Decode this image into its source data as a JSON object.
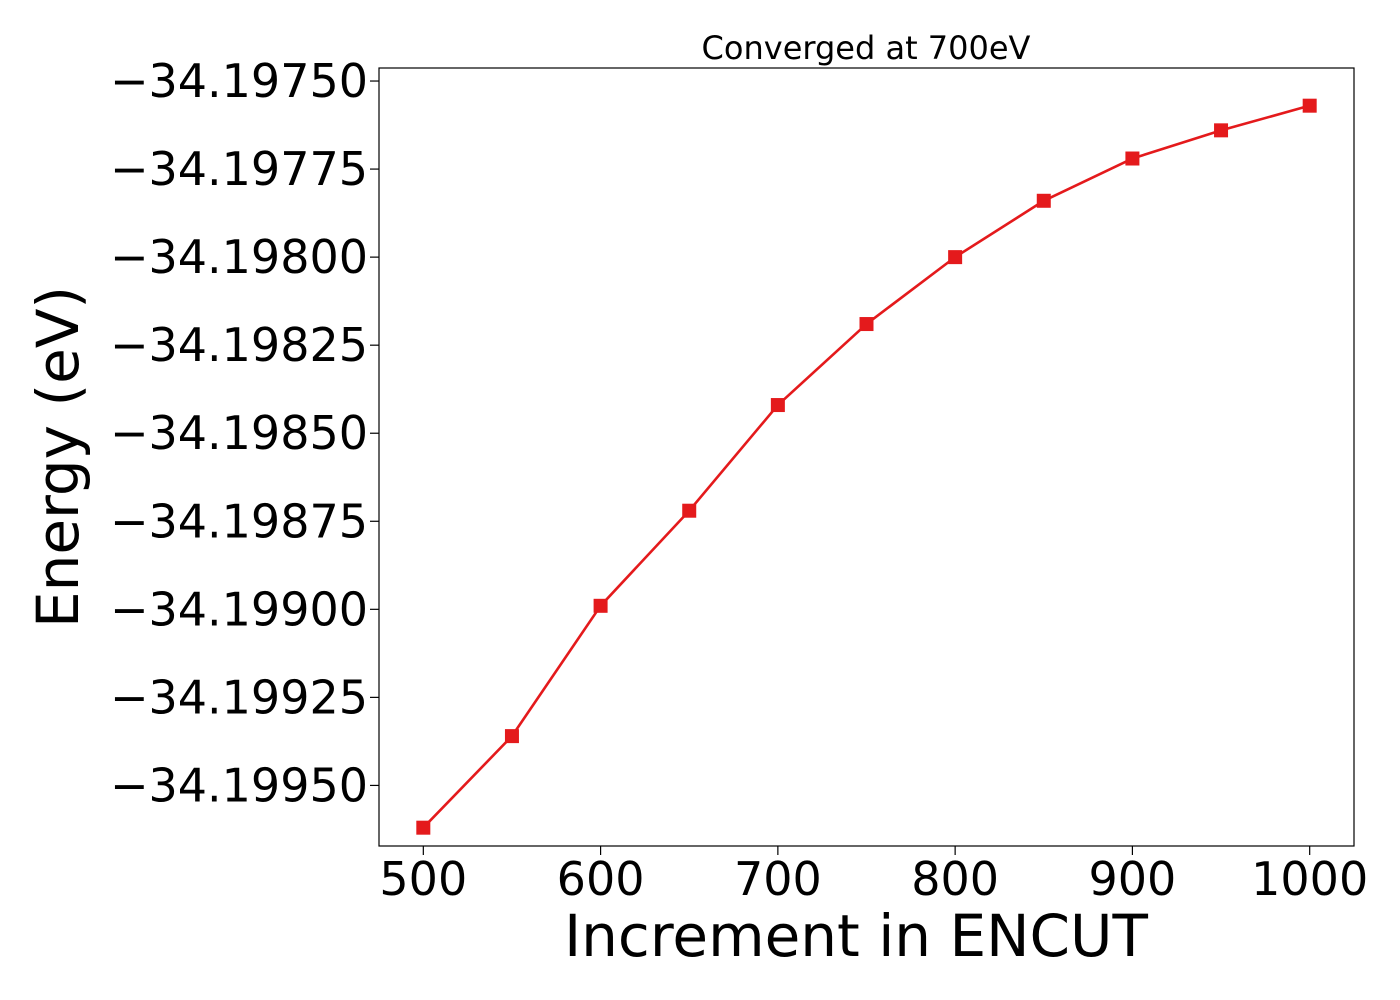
{
  "chart_data": {
    "type": "line",
    "title": "Converged at 700eV",
    "xlabel": "Increment in ENCUT",
    "ylabel": "Energy (eV)",
    "x": [
      500,
      550,
      600,
      650,
      700,
      750,
      800,
      850,
      900,
      950,
      1000
    ],
    "series": [
      {
        "values": [
          -34.19962,
          -34.19936,
          -34.19899,
          -34.19872,
          -34.19842,
          -34.19819,
          -34.198,
          -34.19784,
          -34.19772,
          -34.19764,
          -34.19757
        ],
        "color": "#e41a1c",
        "marker": "square"
      }
    ],
    "xlim": [
      475,
      1025
    ],
    "ylim": [
      -34.199672,
      -34.197463
    ],
    "xticks": [
      500,
      600,
      700,
      800,
      900,
      1000
    ],
    "xtick_labels": [
      "500",
      "600",
      "700",
      "800",
      "900",
      "1000"
    ],
    "yticks": [
      -34.1995,
      -34.19925,
      -34.199,
      -34.19875,
      -34.1985,
      -34.19825,
      -34.198,
      -34.19775,
      -34.1975
    ],
    "ytick_labels": [
      "−34.19950",
      "−34.19925",
      "−34.19900",
      "−34.19875",
      "−34.19850",
      "−34.19825",
      "−34.19800",
      "−34.19775",
      "−34.19750"
    ],
    "grid": false,
    "legend": false
  }
}
